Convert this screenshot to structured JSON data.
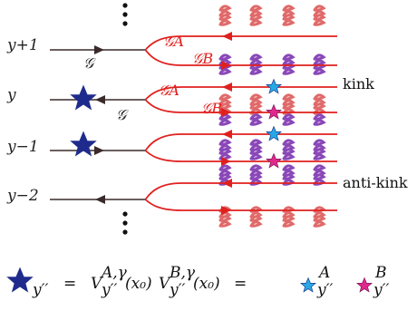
{
  "diagram": {
    "rows": [
      {
        "label": "y+1",
        "arrow": "right",
        "star": false,
        "g_label": "𝒢"
      },
      {
        "label": "y",
        "arrow": "left",
        "star": true,
        "g_label": "𝒢"
      },
      {
        "label": "y−1",
        "arrow": "right",
        "star": true,
        "g_label": ""
      },
      {
        "label": "y−2",
        "arrow": "left",
        "star": false,
        "g_label": ""
      }
    ],
    "branch_labels": {
      "a": "𝒢A",
      "b": "𝒢B"
    },
    "annotations": {
      "kink": "kink",
      "anti_kink": "anti-kink"
    },
    "colors": {
      "wire": "#3a2a2a",
      "loop": "#e0201e",
      "navy_star": "#1f2b8c",
      "blue_star": "#29a8e6",
      "magenta_star": "#e0288c",
      "pink_spring": "#e06a6a",
      "purple_spring": "#8a48b8"
    },
    "equation": {
      "lhs_sub": "y′′",
      "eq1": "=",
      "v1": "V",
      "v1_sup": "A,γ",
      "v1_sub": "y′′",
      "arg1": "(x₀)",
      "v2": "V",
      "v2_sup": "B,γ",
      "v2_sub": "y′′",
      "arg2": "(x₀)",
      "eq2": "=",
      "a_sup": "A",
      "a_sub": "y′′",
      "b_sup": "B",
      "b_sub": "y′′"
    }
  }
}
